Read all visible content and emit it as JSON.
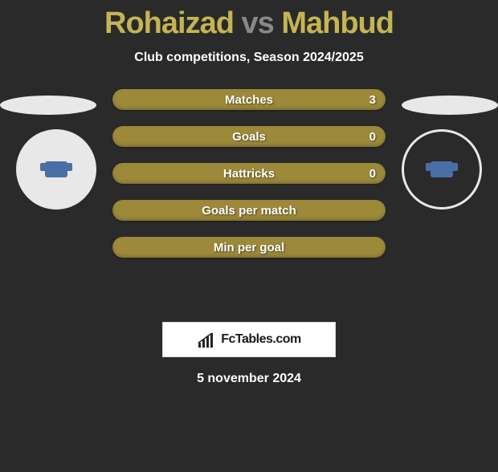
{
  "title": {
    "player1": "Rohaizad",
    "vs": "vs",
    "player2": "Mahbud",
    "player1_color": "#c4b454",
    "vs_color": "#888888",
    "player2_color": "#c4b454",
    "fontsize": 38
  },
  "subtitle": "Club competitions, Season 2024/2025",
  "subtitle_color": "#ffffff",
  "background_color": "#2a2a2a",
  "bars": {
    "color": "#9c8a3a",
    "text_color": "#ffffff",
    "height": 26,
    "gap": 20,
    "rows": [
      {
        "label": "Matches",
        "left": "",
        "right": "3"
      },
      {
        "label": "Goals",
        "left": "",
        "right": "0"
      },
      {
        "label": "Hattricks",
        "left": "",
        "right": "0"
      },
      {
        "label": "Goals per match",
        "left": "",
        "right": ""
      },
      {
        "label": "Min per goal",
        "left": "",
        "right": ""
      }
    ]
  },
  "platforms": {
    "left_color": "#e8e8e8",
    "right_color": "#e8e8e8"
  },
  "figures": {
    "left_bg": "#e8e8e8",
    "right_bg": "#2a2a2a",
    "right_border": "#e8e8e8",
    "jersey_color": "#4a6fa5"
  },
  "logo": {
    "text": "FcTables.com",
    "bg": "#ffffff",
    "text_color": "#1a1a1a",
    "mark_color": "#222222"
  },
  "date": "5 november 2024",
  "date_color": "#ffffff"
}
